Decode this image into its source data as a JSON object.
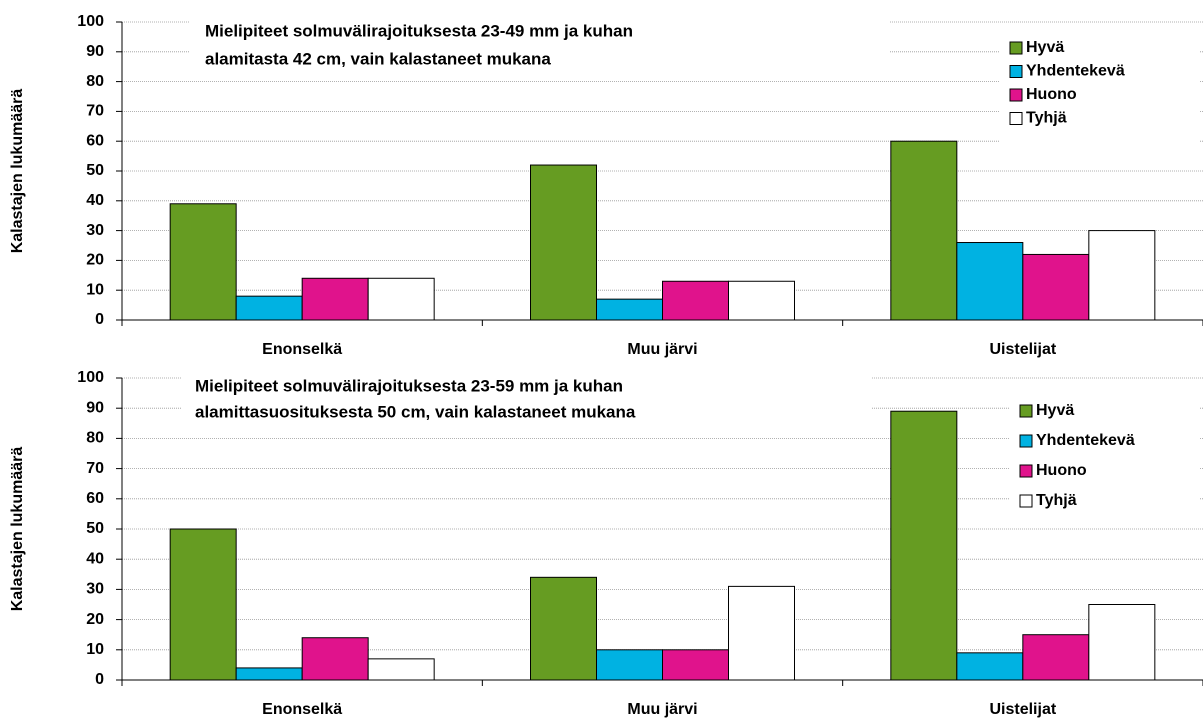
{
  "chart_data": [
    {
      "type": "bar",
      "title": [
        "Mielipiteet solmuvälirajoituksesta 23-49 mm ja kuhan",
        "alamitasta 42 cm, vain kalastaneet mukana"
      ],
      "y_label": "Kalastajen lukumäärä",
      "categories": [
        "Enonselkä",
        "Muu järvi",
        "Uistelijat"
      ],
      "series": [
        {
          "name": "Hyvä",
          "color": "#669c22",
          "values": [
            39,
            52,
            60
          ]
        },
        {
          "name": "Yhdentekevä",
          "color": "#00b2e2",
          "values": [
            8,
            7,
            26
          ]
        },
        {
          "name": "Huono",
          "color": "#e0138c",
          "values": [
            14,
            13,
            22
          ]
        },
        {
          "name": "Tyhjä",
          "color": "#ffffff",
          "values": [
            14,
            13,
            30
          ]
        }
      ],
      "ylim": [
        0,
        100
      ],
      "yticks": [
        0,
        10,
        20,
        30,
        40,
        50,
        60,
        70,
        80,
        90,
        100
      ],
      "grid": true,
      "legend": "right"
    },
    {
      "type": "bar",
      "title": [
        "Mielipiteet solmuvälirajoituksesta 23-59 mm ja kuhan",
        "alamittasuosituksesta 50 cm, vain kalastaneet mukana"
      ],
      "y_label": "Kalastajen lukumäärä",
      "categories": [
        "Enonselkä",
        "Muu järvi",
        "Uistelijat"
      ],
      "series": [
        {
          "name": "Hyvä",
          "color": "#669c22",
          "values": [
            50,
            34,
            89
          ]
        },
        {
          "name": "Yhdentekevä",
          "color": "#00b2e2",
          "values": [
            4,
            10,
            9
          ]
        },
        {
          "name": "Huono",
          "color": "#e0138c",
          "values": [
            14,
            10,
            15
          ]
        },
        {
          "name": "Tyhjä",
          "color": "#ffffff",
          "values": [
            7,
            31,
            25
          ]
        }
      ],
      "ylim": [
        0,
        100
      ],
      "yticks": [
        0,
        10,
        20,
        30,
        40,
        50,
        60,
        70,
        80,
        90,
        100
      ],
      "grid": true,
      "legend": "right"
    }
  ]
}
